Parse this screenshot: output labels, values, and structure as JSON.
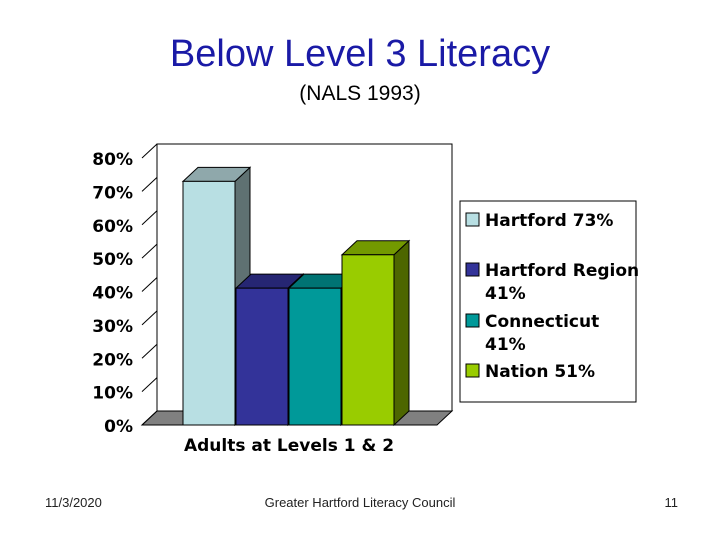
{
  "slide": {
    "title": "Below Level 3 Literacy",
    "subtitle": "(NALS 1993)"
  },
  "footer": {
    "date": "11/3/2020",
    "organization": "Greater Hartford Literacy Council",
    "page_number": "11"
  },
  "chart_data": {
    "type": "bar",
    "style": "3d-clustered-column",
    "categories": [
      "Adults at Levels 1 & 2"
    ],
    "xlabel": "",
    "ylabel": "",
    "ylim": [
      0,
      80
    ],
    "y_ticks": [
      "0%",
      "10%",
      "20%",
      "30%",
      "40%",
      "50%",
      "60%",
      "70%",
      "80%"
    ],
    "grid": false,
    "legend_position": "right",
    "series": [
      {
        "legend": [
          "Hartford 73%"
        ],
        "values": [
          73
        ],
        "color": "#b8dfe3",
        "side_color": "#5f7172",
        "top_color": "#8fa8ab"
      },
      {
        "legend": [
          "Hartford Region",
          "41%"
        ],
        "values": [
          41
        ],
        "color": "#333399",
        "side_color": "#1a1a4d",
        "top_color": "#262673"
      },
      {
        "legend": [
          "Connecticut",
          "41%"
        ],
        "values": [
          41
        ],
        "color": "#009999",
        "side_color": "#004d4d",
        "top_color": "#007373"
      },
      {
        "legend": [
          "Nation 51%"
        ],
        "values": [
          51
        ],
        "color": "#99cc00",
        "side_color": "#4d6600",
        "top_color": "#739900"
      }
    ]
  }
}
